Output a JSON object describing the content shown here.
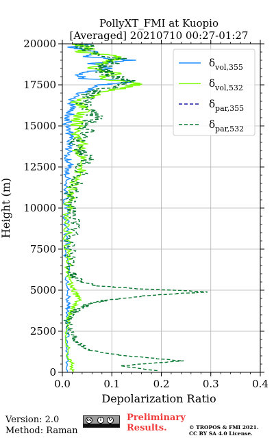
{
  "chart_data": {
    "type": "line",
    "title": "PollyXT_FMI at Kuopio",
    "subtitle": "[Averaged] 20210710 00:27-01:27",
    "xlabel": "Depolarization Ratio",
    "ylabel": "Height (m)",
    "xlim": [
      0,
      0.4
    ],
    "ylim": [
      0,
      20000
    ],
    "xticks": [
      "0.0",
      "0.1",
      "0.2",
      "0.3",
      "0.4"
    ],
    "yticks": [
      "0",
      "2500",
      "5000",
      "7500",
      "10000",
      "12500",
      "15000",
      "17500",
      "20000"
    ],
    "grid": true,
    "legend_position": "top-right",
    "series": [
      {
        "name": "δvol,355",
        "sym": "δ",
        "sub": "vol,355",
        "color": "#1f8fff",
        "dash": "solid",
        "noise": 0.003,
        "points": [
          [
            0.01,
            0
          ],
          [
            0.01,
            1000
          ],
          [
            0.01,
            2000
          ],
          [
            0.01,
            3000
          ],
          [
            0.011,
            3800
          ],
          [
            0.013,
            4200
          ],
          [
            0.011,
            4600
          ],
          [
            0.01,
            5500
          ],
          [
            0.009,
            7000
          ],
          [
            0.01,
            8000
          ],
          [
            0.008,
            9000
          ],
          [
            0.009,
            10000
          ],
          [
            0.01,
            11000
          ],
          [
            0.012,
            12000
          ],
          [
            0.014,
            12500
          ],
          [
            0.012,
            13000
          ],
          [
            0.013,
            13500
          ],
          [
            0.011,
            14000
          ],
          [
            0.015,
            14500
          ],
          [
            0.008,
            15000
          ],
          [
            0.012,
            15500
          ],
          [
            0.02,
            16000
          ],
          [
            0.018,
            16500
          ],
          [
            0.04,
            17000
          ],
          [
            0.08,
            17500
          ],
          [
            0.15,
            17700
          ],
          [
            0.04,
            17900
          ],
          [
            0.03,
            18200
          ],
          [
            0.1,
            18500
          ],
          [
            0.06,
            18800
          ],
          [
            0.14,
            19000
          ],
          [
            0.05,
            19200
          ],
          [
            0.07,
            19500
          ],
          [
            0.02,
            19800
          ],
          [
            0.05,
            20000
          ]
        ]
      },
      {
        "name": "δvol,532",
        "sym": "δ",
        "sub": "vol,532",
        "color": "#7cfc00",
        "dash": "solid",
        "noise": 0.004,
        "points": [
          [
            0.02,
            0
          ],
          [
            0.02,
            500
          ],
          [
            0.012,
            1000
          ],
          [
            0.01,
            2000
          ],
          [
            0.01,
            3000
          ],
          [
            0.014,
            3500
          ],
          [
            0.024,
            4000
          ],
          [
            0.038,
            4500
          ],
          [
            0.025,
            4800
          ],
          [
            0.018,
            5200
          ],
          [
            0.014,
            6000
          ],
          [
            0.012,
            7000
          ],
          [
            0.011,
            8000
          ],
          [
            0.012,
            9000
          ],
          [
            0.012,
            10000
          ],
          [
            0.015,
            10500
          ],
          [
            0.018,
            11000
          ],
          [
            0.022,
            11500
          ],
          [
            0.03,
            12000
          ],
          [
            0.042,
            12500
          ],
          [
            0.048,
            13000
          ],
          [
            0.03,
            13500
          ],
          [
            0.045,
            14000
          ],
          [
            0.022,
            14500
          ],
          [
            0.03,
            15000
          ],
          [
            0.028,
            15500
          ],
          [
            0.05,
            16000
          ],
          [
            0.03,
            16500
          ],
          [
            0.08,
            17000
          ],
          [
            0.12,
            17300
          ],
          [
            0.16,
            17600
          ],
          [
            0.07,
            17900
          ],
          [
            0.11,
            18200
          ],
          [
            0.06,
            18500
          ],
          [
            0.08,
            18800
          ],
          [
            0.1,
            19000
          ],
          [
            0.12,
            19200
          ],
          [
            0.04,
            19500
          ],
          [
            0.06,
            19800
          ],
          [
            0.02,
            20000
          ]
        ]
      },
      {
        "name": "δpar,355",
        "sym": "δ",
        "sub": "par,355",
        "color": "#1a1aa8",
        "dash": "dashed",
        "points": []
      },
      {
        "name": "δpar,532",
        "sym": "δ",
        "sub": "par,532",
        "color": "#0a7a32",
        "dash": "dashed",
        "noise": 0.006,
        "points": [
          [
            0.19,
            100
          ],
          [
            0.12,
            400
          ],
          [
            0.24,
            700
          ],
          [
            0.13,
            1000
          ],
          [
            0.06,
            1300
          ],
          [
            0.04,
            1600
          ],
          [
            0.025,
            2000
          ],
          [
            0.015,
            2500
          ],
          [
            0.012,
            3000
          ],
          [
            0.015,
            3500
          ],
          [
            0.03,
            3800
          ],
          [
            0.05,
            4100
          ],
          [
            0.09,
            4400
          ],
          [
            0.18,
            4700
          ],
          [
            0.3,
            4900
          ],
          [
            0.14,
            5100
          ],
          [
            0.06,
            5300
          ],
          [
            0.03,
            5700
          ],
          [
            0.02,
            6000
          ],
          [
            0.015,
            7000
          ],
          [
            0.015,
            8000
          ],
          [
            0.03,
            9000
          ],
          [
            0.015,
            10000
          ],
          [
            0.02,
            10800
          ],
          [
            0.03,
            11500
          ],
          [
            0.04,
            12500
          ],
          [
            0.05,
            13000
          ],
          [
            0.03,
            13500
          ],
          [
            0.03,
            14000
          ],
          [
            0.05,
            14500
          ],
          [
            0.05,
            15200
          ],
          [
            0.07,
            15600
          ],
          [
            0.04,
            16200
          ],
          [
            0.06,
            17000
          ],
          [
            0.1,
            17400
          ],
          [
            0.13,
            17800
          ],
          [
            0.09,
            18200
          ],
          [
            0.08,
            18600
          ],
          [
            0.12,
            19000
          ],
          [
            0.06,
            19500
          ],
          [
            0.04,
            20000
          ]
        ]
      }
    ]
  },
  "footer": {
    "version": "Version: 2.0",
    "method": "Method: Raman",
    "preliminary_line1": "Preliminary",
    "preliminary_line2": "Results.",
    "copyright_line1": "© TROPOS & FMI 2021.",
    "copyright_line2": "CC BY SA 4.0 License."
  }
}
